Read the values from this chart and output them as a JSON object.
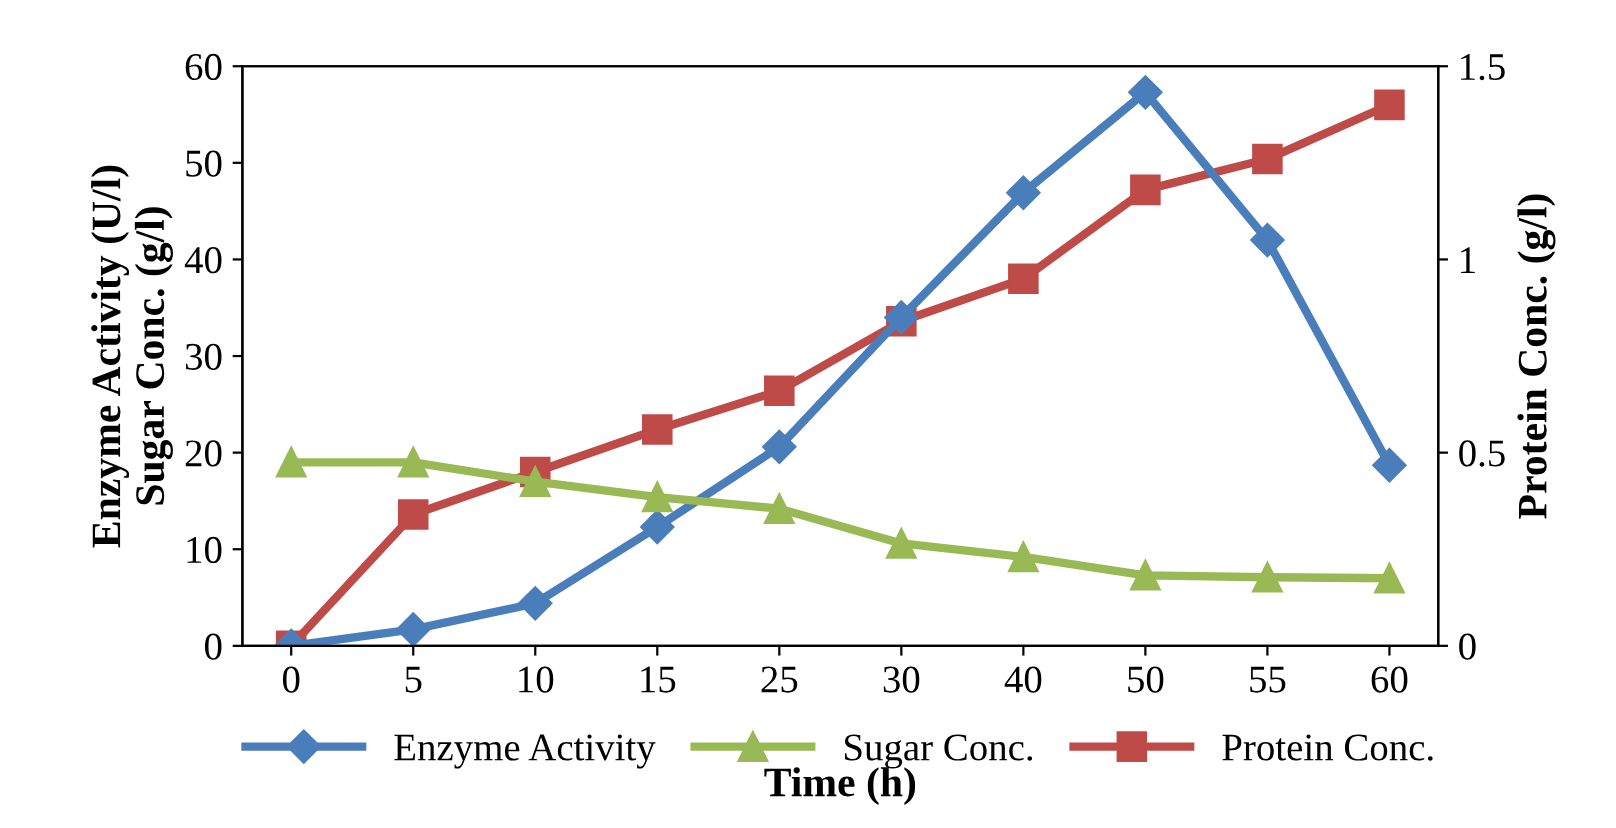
{
  "chart_data": {
    "type": "line",
    "xlabel": "Time (h)",
    "ylabel": "Enzyme Activity (U/l)\nSugar Conc. (g/l)",
    "y2label": "Protein Conc. (g/l)",
    "categories": [
      "0",
      "5",
      "10",
      "15",
      "25",
      "30",
      "40",
      "50",
      "55",
      "60"
    ],
    "ylim": [
      0,
      60
    ],
    "yticks": [
      0,
      10,
      20,
      30,
      40,
      50,
      60
    ],
    "y2lim": [
      0,
      1.5
    ],
    "y2ticks": [
      0,
      0.5,
      1,
      1.5
    ],
    "grid": false,
    "legend": "bottom",
    "line_style": "solid",
    "series": [
      {
        "name": "Enzyme Activity",
        "color": "#4a7ebb",
        "marker": "diamond",
        "values": [
          0,
          1.7,
          4.4,
          12.3,
          20.6,
          34,
          46.9,
          57.3,
          42,
          18.7
        ]
      },
      {
        "name": "Sugar Conc.",
        "color": "#98b954",
        "marker": "triangle",
        "values": [
          19,
          19,
          17,
          15.4,
          14.2,
          10.6,
          9.2,
          7.3,
          7.1,
          7
        ]
      },
      {
        "name": "Protein Conc.",
        "color": "#be4b48",
        "marker": "square",
        "axis": "y2",
        "values": [
          0,
          0.34,
          0.45,
          0.56,
          0.66,
          0.84,
          0.95,
          1.18,
          1.26,
          1.4
        ]
      }
    ]
  }
}
